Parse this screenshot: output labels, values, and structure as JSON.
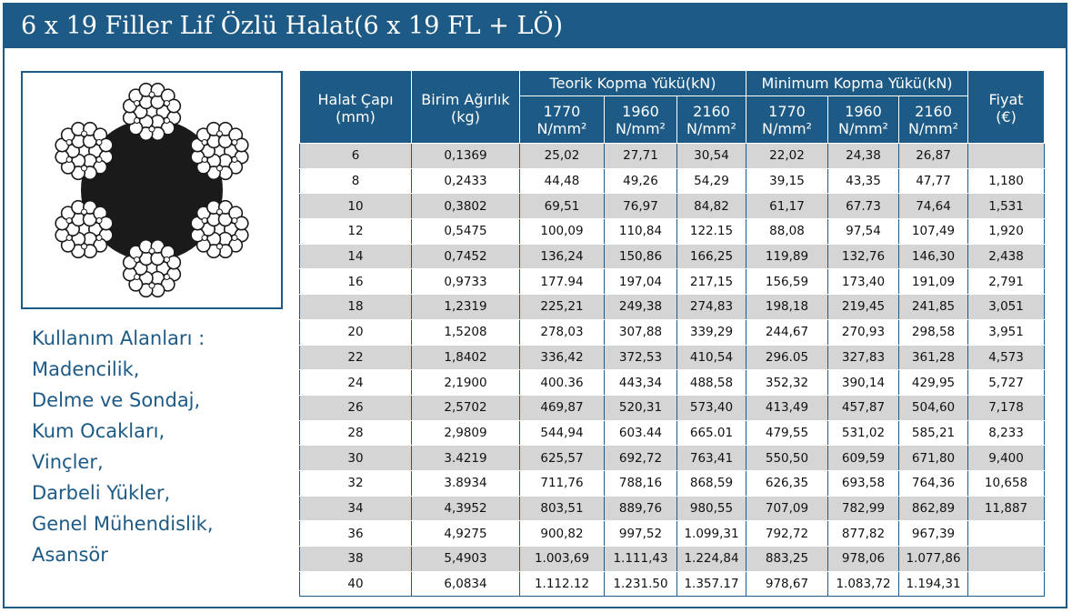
{
  "title": "6 x 19 Filler Lif Özlü Halat(6 x 19 FL + LÖ)",
  "colors": {
    "brand": "#1d5a86",
    "stripe": "#d5d5d5"
  },
  "diagram": {
    "icon": "wire-rope-cross-section-icon"
  },
  "usage": {
    "heading": "Kullanım Alanları :",
    "items": [
      "Madencilik,",
      "Delme ve Sondaj,",
      "Kum Ocakları,",
      "Vinçler,",
      "Darbeli Yükler,",
      "Genel Mühendislik,",
      "Asansör"
    ]
  },
  "table": {
    "headers": {
      "diameter": {
        "line1": "Halat Çapı",
        "line2": "(mm)"
      },
      "weight": {
        "line1": "Birim Ağırlık",
        "line2": "(kg)"
      },
      "theoretical": "Teorik Kopma Yükü(kN)",
      "minimum": "Minimum Kopma Yükü(kN)",
      "price": {
        "line1": "Fiyat",
        "line2": "(€)"
      },
      "grades": [
        {
          "value": "1770",
          "unit": "N/mm²"
        },
        {
          "value": "1960",
          "unit": "N/mm²"
        },
        {
          "value": "2160",
          "unit": "N/mm²"
        },
        {
          "value": "1770",
          "unit": "N/mm²"
        },
        {
          "value": "1960",
          "unit": "N/mm²"
        },
        {
          "value": "2160",
          "unit": "N/mm²"
        }
      ]
    },
    "rows": [
      [
        "6",
        "0,1369",
        "25,02",
        "27,71",
        "30,54",
        "22,02",
        "24,38",
        "26,87",
        ""
      ],
      [
        "8",
        "0,2433",
        "44,48",
        "49,26",
        "54,29",
        "39,15",
        "43,35",
        "47,77",
        "1,180"
      ],
      [
        "10",
        "0,3802",
        "69,51",
        "76,97",
        "84,82",
        "61,17",
        "67.73",
        "74,64",
        "1,531"
      ],
      [
        "12",
        "0,5475",
        "100,09",
        "110,84",
        "122.15",
        "88,08",
        "97,54",
        "107,49",
        "1,920"
      ],
      [
        "14",
        "0,7452",
        "136,24",
        "150,86",
        "166,25",
        "119,89",
        "132,76",
        "146,30",
        "2,438"
      ],
      [
        "16",
        "0,9733",
        "177.94",
        "197,04",
        "217,15",
        "156,59",
        "173,40",
        "191,09",
        "2,791"
      ],
      [
        "18",
        "1,2319",
        "225,21",
        "249,38",
        "274,83",
        "198,18",
        "219,45",
        "241,85",
        "3,051"
      ],
      [
        "20",
        "1,5208",
        "278,03",
        "307,88",
        "339,29",
        "244,67",
        "270,93",
        "298,58",
        "3,951"
      ],
      [
        "22",
        "1,8402",
        "336,42",
        "372,53",
        "410,54",
        "296.05",
        "327,83",
        "361,28",
        "4,573"
      ],
      [
        "24",
        "2,1900",
        "400.36",
        "443,34",
        "488,58",
        "352,32",
        "390,14",
        "429,95",
        "5,727"
      ],
      [
        "26",
        "2,5702",
        "469,87",
        "520,31",
        "573,40",
        "413,49",
        "457,87",
        "504,60",
        "7,178"
      ],
      [
        "28",
        "2,9809",
        "544,94",
        "603.44",
        "665.01",
        "479,55",
        "531,02",
        "585,21",
        "8,233"
      ],
      [
        "30",
        "3.4219",
        "625,57",
        "692,72",
        "763,41",
        "550,50",
        "609,59",
        "671,80",
        "9,400"
      ],
      [
        "32",
        "3.8934",
        "711,76",
        "788,16",
        "868,59",
        "626,35",
        "693,58",
        "764,36",
        "10,658"
      ],
      [
        "34",
        "4,3952",
        "803,51",
        "889,76",
        "980,55",
        "707,09",
        "782,99",
        "862,89",
        "11,887"
      ],
      [
        "36",
        "4,9275",
        "900,82",
        "997,52",
        "1.099,31",
        "792,72",
        "877,82",
        "967,39",
        ""
      ],
      [
        "38",
        "5,4903",
        "1.003,69",
        "1.111,43",
        "1.224,84",
        "883,25",
        "978,06",
        "1.077,86",
        ""
      ],
      [
        "40",
        "6,0834",
        "1.112.12",
        "1.231.50",
        "1.357.17",
        "978,67",
        "1.083,72",
        "1.194,31",
        ""
      ]
    ]
  }
}
